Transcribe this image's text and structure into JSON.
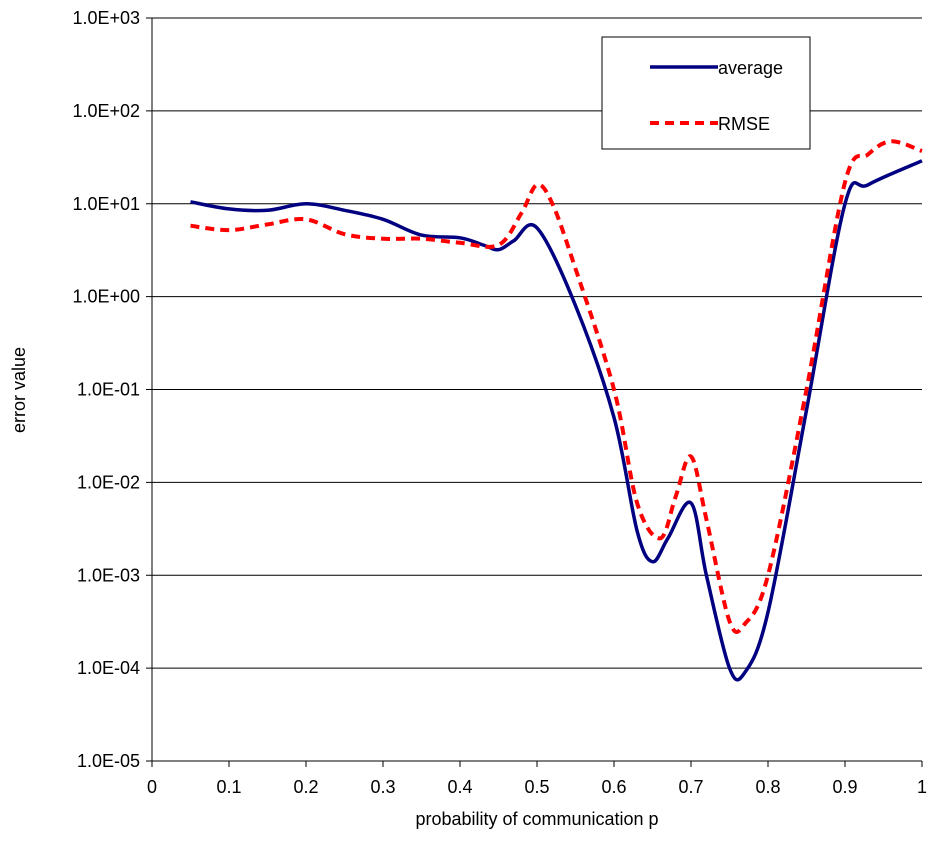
{
  "chart_data": {
    "type": "line",
    "title": "",
    "xlabel": "probability of communication p",
    "ylabel": "error value",
    "xlim": [
      0,
      1
    ],
    "ylim": [
      1e-05,
      1000
    ],
    "y_scale": "log",
    "grid": "horizontal",
    "legend_position": "top-right",
    "x_ticks": [
      "0",
      "0.1",
      "0.2",
      "0.3",
      "0.4",
      "0.5",
      "0.6",
      "0.7",
      "0.8",
      "0.9",
      "1"
    ],
    "y_ticks": [
      "1.0E-05",
      "1.0E-04",
      "1.0E-03",
      "1.0E-02",
      "1.0E-01",
      "1.0E+00",
      "1.0E+01",
      "1.0E+02",
      "1.0E+03"
    ],
    "series": [
      {
        "name": "average",
        "color": "#000080",
        "style": "solid",
        "x": [
          0.05,
          0.1,
          0.15,
          0.2,
          0.25,
          0.3,
          0.35,
          0.4,
          0.43,
          0.45,
          0.47,
          0.5,
          0.55,
          0.6,
          0.63,
          0.65,
          0.67,
          0.7,
          0.72,
          0.75,
          0.77,
          0.8,
          0.85,
          0.9,
          0.93,
          1.0
        ],
        "y": [
          10.5,
          8.8,
          8.5,
          10.0,
          8.5,
          6.8,
          4.6,
          4.3,
          3.6,
          3.2,
          4.0,
          5.5,
          0.8,
          0.05,
          0.003,
          0.0014,
          0.0025,
          0.006,
          0.001,
          0.0001,
          9e-05,
          0.0004,
          0.06,
          10.0,
          16.0,
          29.0
        ]
      },
      {
        "name": "RMSE",
        "color": "#ff0000",
        "style": "dashed",
        "x": [
          0.05,
          0.1,
          0.15,
          0.2,
          0.25,
          0.3,
          0.35,
          0.4,
          0.45,
          0.48,
          0.5,
          0.52,
          0.55,
          0.6,
          0.63,
          0.66,
          0.68,
          0.7,
          0.72,
          0.75,
          0.77,
          0.8,
          0.85,
          0.9,
          0.93,
          0.96,
          1.0
        ],
        "y": [
          5.8,
          5.2,
          6.0,
          6.8,
          4.7,
          4.2,
          4.2,
          3.8,
          3.6,
          8.0,
          16.0,
          10.0,
          2.0,
          0.1,
          0.006,
          0.0025,
          0.007,
          0.019,
          0.004,
          0.00032,
          0.0003,
          0.001,
          0.1,
          17.0,
          34.0,
          47.0,
          37.0
        ]
      }
    ]
  }
}
